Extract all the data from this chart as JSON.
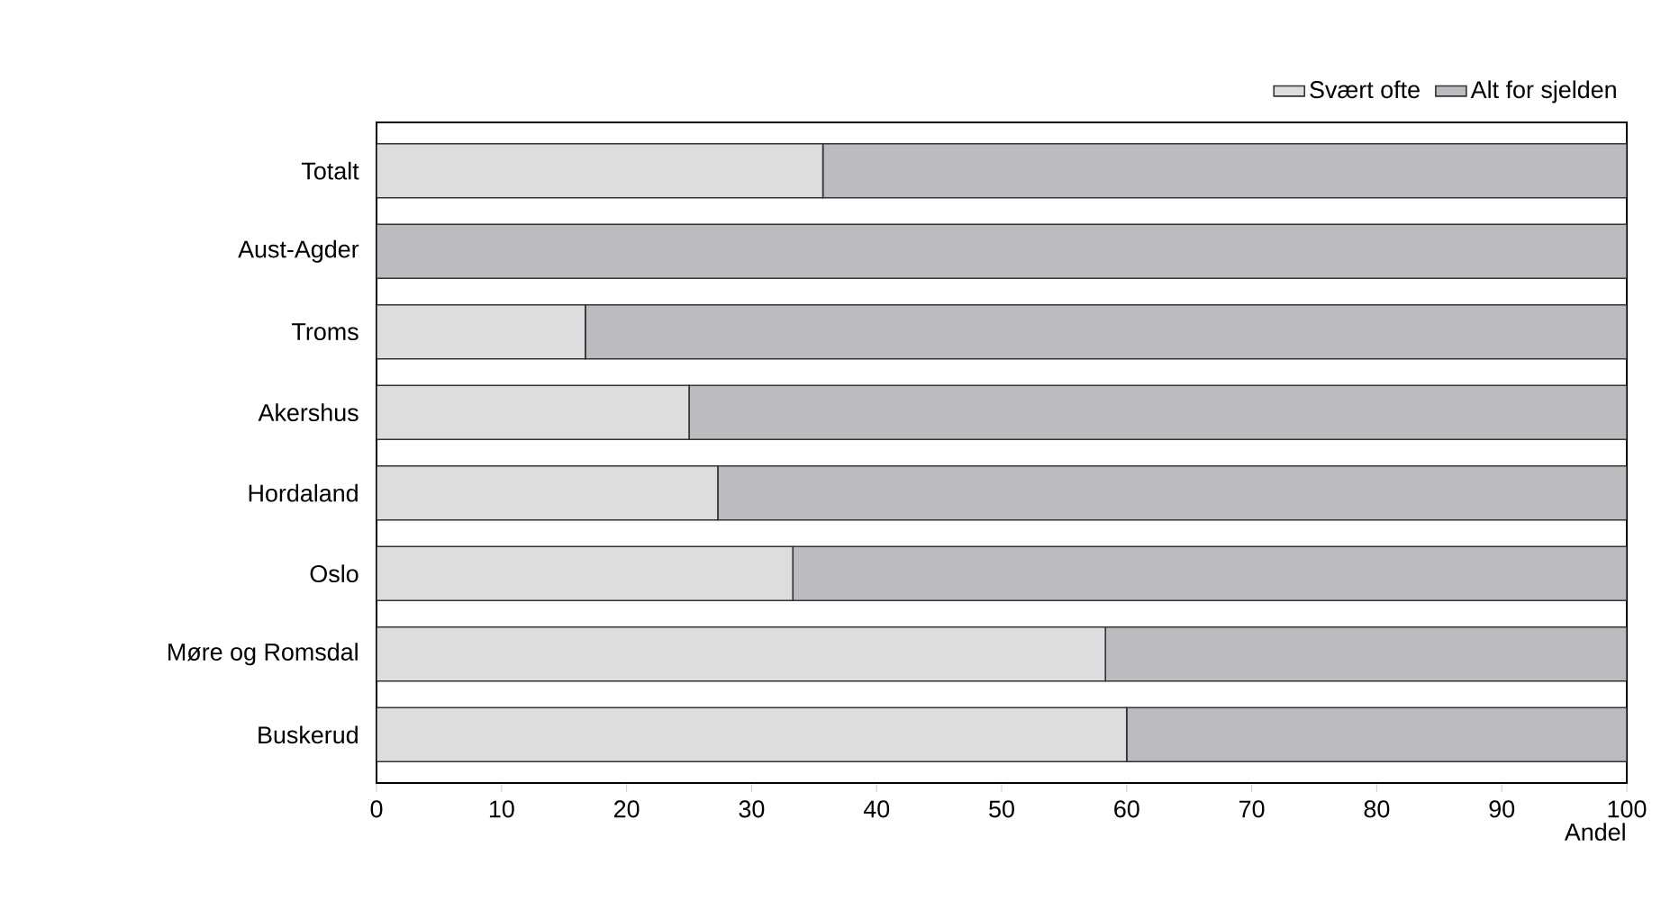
{
  "chart_data": {
    "type": "bar",
    "orientation": "horizontal",
    "stacked": true,
    "categories": [
      "Totalt",
      "Aust-Agder",
      "Troms",
      "Akershus",
      "Hordaland",
      "Oslo",
      "Møre og Romsdal",
      "Buskerud"
    ],
    "series": [
      {
        "name": "Svært ofte",
        "color": "#dcdddf",
        "values": [
          35.7,
          0,
          16.7,
          25,
          27.3,
          33.3,
          58.3,
          60
        ]
      },
      {
        "name": "Alt for sjelden",
        "color": "#bbbcc0",
        "values": [
          64.3,
          100,
          83.3,
          75,
          72.7,
          66.7,
          41.7,
          40
        ]
      }
    ],
    "xlabel": "Andel",
    "xlim": [
      0,
      100
    ],
    "xticks": [
      0,
      10,
      20,
      30,
      40,
      50,
      60,
      70,
      80,
      90,
      100
    ],
    "grid": false,
    "legend": "top right"
  }
}
